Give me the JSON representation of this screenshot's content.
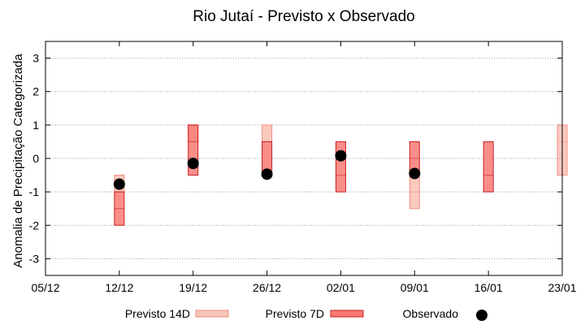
{
  "chart_data": {
    "type": "errorbar-box",
    "title": "Rio Jutaí - Previsto x Observado",
    "xlabel": "",
    "ylabel": "Anomalia de Precipitação Categorizada",
    "ylim": [
      -3.5,
      3.5
    ],
    "yticks": [
      "3",
      "2",
      "1",
      "0",
      "-1",
      "-2",
      "-3"
    ],
    "ytick_values": [
      3,
      2,
      1,
      0,
      -1,
      -2,
      -3
    ],
    "xlim": [
      0,
      7
    ],
    "xticks": [
      "05/12",
      "12/12",
      "19/12",
      "26/12",
      "02/01",
      "09/01",
      "16/01",
      "23/01"
    ],
    "grid": true,
    "colors": {
      "p14_fill": "#f9c4b8",
      "p14_stroke": "#f08f80",
      "p7_fill": "#f87a74",
      "p7_stroke": "#c81e1e",
      "obs": "#000000"
    },
    "series": [
      {
        "name": "Previsto 14D",
        "bars": [
          {
            "x": 1.0,
            "low": -1.0,
            "mid": -0.5,
            "high": -0.5
          },
          {
            "x": 2.0,
            "low": 0.5,
            "mid": 1.0,
            "high": 1.0
          },
          {
            "x": 3.0,
            "low": 0.5,
            "mid": 0.5,
            "high": 1.0
          },
          {
            "x": 5.0,
            "low": -1.5,
            "mid": -1.0,
            "high": -0.5
          },
          {
            "x": 7.0,
            "low": -0.5,
            "mid": 0.5,
            "high": 1.0
          }
        ]
      },
      {
        "name": "Previsto 7D",
        "bars": [
          {
            "x": 1.0,
            "low": -2.0,
            "mid": -1.5,
            "high": -1.0
          },
          {
            "x": 2.0,
            "low": -0.5,
            "mid": 0.5,
            "high": 1.0
          },
          {
            "x": 3.0,
            "low": -0.5,
            "mid": -0.5,
            "high": 0.5
          },
          {
            "x": 4.0,
            "low": -1.0,
            "mid": -0.5,
            "high": 0.5
          },
          {
            "x": 5.0,
            "low": -0.5,
            "mid": 0.0,
            "high": 0.5
          },
          {
            "x": 6.0,
            "low": -1.0,
            "mid": -0.5,
            "high": 0.5
          }
        ]
      },
      {
        "name": "Observado",
        "points": [
          {
            "x": 1.0,
            "y": -0.77
          },
          {
            "x": 2.0,
            "y": -0.15
          },
          {
            "x": 3.0,
            "y": -0.47
          },
          {
            "x": 4.0,
            "y": 0.08
          },
          {
            "x": 5.0,
            "y": -0.45
          }
        ]
      }
    ],
    "legend": {
      "position": "bottom",
      "items": [
        "Previsto 14D",
        "Previsto 7D",
        "Observado"
      ]
    }
  }
}
